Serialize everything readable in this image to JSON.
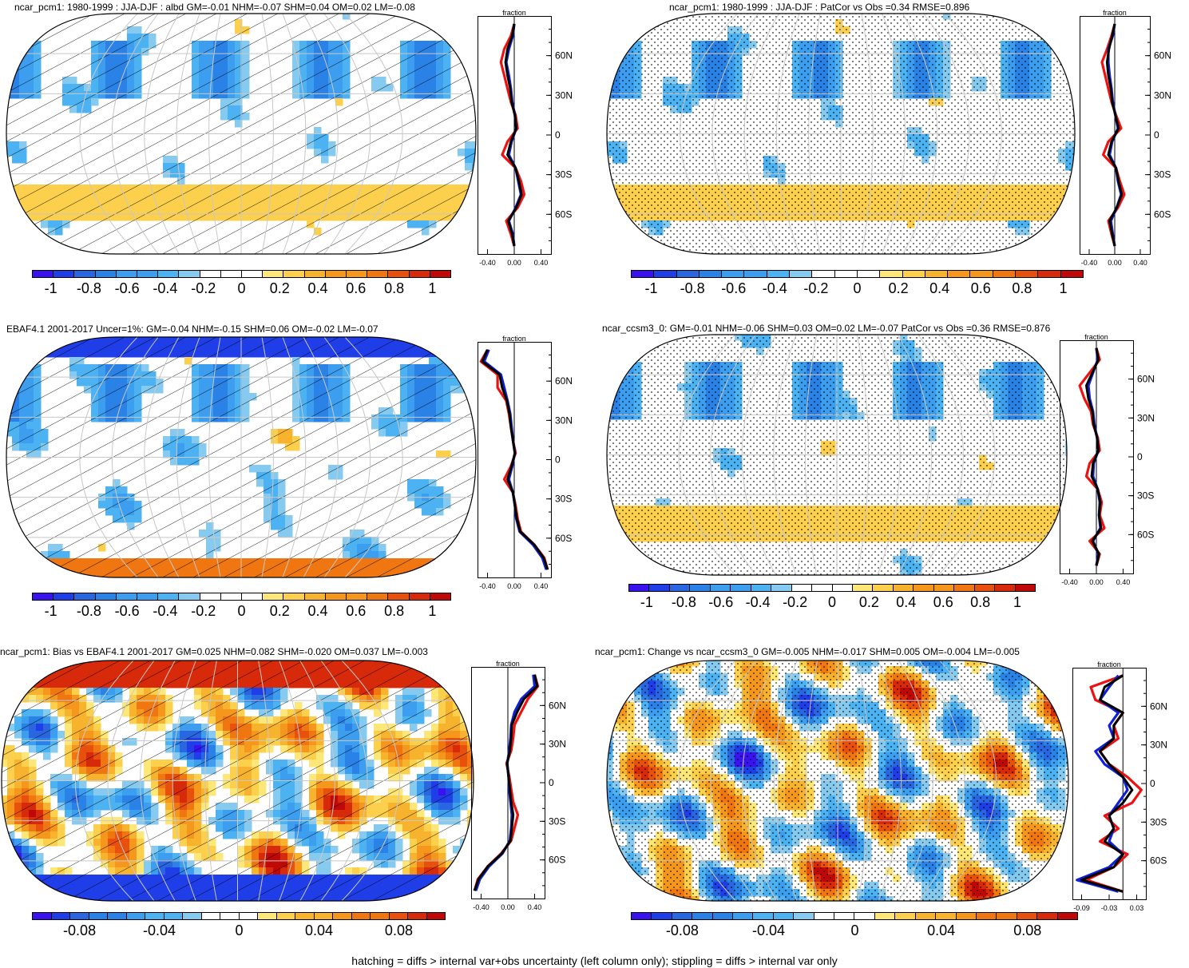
{
  "panels": [
    {
      "id": "p1",
      "title": "ncar_pcm1: 1980-1999 : JJA-DJF : albd GM=-0.01 NHM=-0.07 SHM=0.04 OM=0.02 LM=-0.08",
      "overlay": "hatch",
      "colorbar_ticks": [
        "-1",
        "-0.8",
        "-0.6",
        "-0.4",
        "-0.2",
        "0",
        "0.2",
        "0.4",
        "0.6",
        "0.8",
        "1"
      ],
      "zonal": {
        "label": "fraction",
        "lat_ticks": [
          "60N",
          "30N",
          "0",
          "30S",
          "60S"
        ],
        "x_ticks": [
          "-0.40",
          "0.00",
          "0.40"
        ],
        "xrange": [
          -0.55,
          0.55
        ]
      }
    },
    {
      "id": "p2",
      "title": "ncar_pcm1: 1980-1999 : JJA-DJF : PatCor vs Obs =0.34 RMSE=0.896",
      "overlay": "stipple",
      "colorbar_ticks": [
        "-1",
        "-0.8",
        "-0.6",
        "-0.4",
        "-0.2",
        "0",
        "0.2",
        "0.4",
        "0.6",
        "0.8",
        "1"
      ],
      "zonal": {
        "label": "fraction",
        "lat_ticks": [
          "60N",
          "30N",
          "0",
          "30S",
          "60S"
        ],
        "x_ticks": [
          "-0.40",
          "0.00",
          "0.40"
        ],
        "xrange": [
          -0.55,
          0.55
        ]
      }
    },
    {
      "id": "p3",
      "title": "EBAF4.1 2001-2017 Uncer=1%: GM=-0.04 NHM=-0.15 SHM=0.06 OM=-0.02 LM=-0.07",
      "overlay": "hatch",
      "colorbar_ticks": [
        "-1",
        "-0.8",
        "-0.6",
        "-0.4",
        "-0.2",
        "0",
        "0.2",
        "0.4",
        "0.6",
        "0.8",
        "1"
      ],
      "zonal": {
        "label": "fraction",
        "lat_ticks": [
          "60N",
          "30N",
          "0",
          "30S",
          "60S"
        ],
        "x_ticks": [
          "-0.40",
          "0.00",
          "0.40"
        ],
        "xrange": [
          -0.55,
          0.55
        ]
      }
    },
    {
      "id": "p4",
      "title": "ncar_ccsm3_0: GM=-0.01 NHM=-0.06 SHM=0.03 OM=0.02 LM=-0.07 PatCor vs Obs =0.36 RMSE=0.876",
      "overlay": "stipple",
      "colorbar_ticks": [
        "-1",
        "-0.8",
        "-0.6",
        "-0.4",
        "-0.2",
        "0",
        "0.2",
        "0.4",
        "0.6",
        "0.8",
        "1"
      ],
      "zonal": {
        "label": "fraction",
        "lat_ticks": [
          "60N",
          "30N",
          "0",
          "30S",
          "60S"
        ],
        "x_ticks": [
          "-0.40",
          "0.00",
          "0.40"
        ],
        "xrange": [
          -0.55,
          0.55
        ]
      }
    },
    {
      "id": "p5",
      "title": "ncar_pcm1: Bias vs EBAF4.1 2001-2017 GM=0.025 NHM=0.082 SHM=-0.020 OM=0.037 LM=-0.003",
      "overlay": "hatch",
      "colorbar_ticks": [
        "-0.08",
        "-0.04",
        "0",
        "0.04",
        "0.08"
      ],
      "zonal": {
        "label": "fraction",
        "lat_ticks": [
          "60N",
          "30N",
          "0",
          "30S",
          "60S"
        ],
        "x_ticks": [
          "-0.40",
          "0.00",
          "0.40"
        ],
        "xrange": [
          -0.55,
          0.55
        ]
      }
    },
    {
      "id": "p6",
      "title": "ncar_pcm1: Change vs ncar_ccsm3_0 GM=-0.005 NHM=-0.017 SHM=0.005 OM=-0.004 LM=-0.005",
      "overlay": "stipple",
      "colorbar_ticks": [
        "-0.08",
        "-0.04",
        "0",
        "0.04",
        "0.08"
      ],
      "zonal": {
        "label": "fraction",
        "lat_ticks": [
          "60N",
          "30N",
          "0",
          "30S",
          "60S"
        ],
        "x_ticks": [
          "-0.09",
          "-0.03",
          "0.03"
        ],
        "xrange": [
          -0.11,
          0.05
        ]
      }
    }
  ],
  "footer": "hatching = diffs > internal var+obs uncertainty (left column only); stippling = diffs > internal var only",
  "colors": {
    "colormap": [
      "#3a12f0",
      "#1f3ee8",
      "#2a66e0",
      "#2b82e6",
      "#3d9ef0",
      "#4cb2f2",
      "#86cbef",
      "#ffffff",
      "#fff6a8",
      "#fde779",
      "#fccf4d",
      "#f8b32e",
      "#f5961d",
      "#f07612",
      "#e8500d",
      "#d72a0a",
      "#c00808"
    ],
    "red_line": "#ee1111",
    "blue_line": "#1020d8",
    "black_line": "#000000"
  },
  "chart_data": [
    {
      "type": "heatmap",
      "title": "ncar_pcm1: 1980-1999 : JJA-DJF : albd GM=-0.01 NHM=-0.07 SHM=0.04 OM=0.02 LM=-0.08",
      "colorbar": {
        "range": [
          -1,
          1
        ],
        "ticks": [
          -1,
          -0.8,
          -0.6,
          -0.4,
          -0.2,
          0,
          0.2,
          0.4,
          0.6,
          0.8,
          1
        ]
      },
      "projection": "robinson",
      "zonal_mean": {
        "xlabel": "fraction",
        "xlim": [
          -0.55,
          0.55
        ],
        "ylim": [
          -90,
          90
        ],
        "lat": [
          -84,
          -75,
          -65,
          -55,
          -45,
          -35,
          -25,
          -15,
          -5,
          5,
          15,
          25,
          35,
          45,
          55,
          65,
          75,
          84
        ],
        "series": [
          {
            "color": "red",
            "values": [
              0.0,
              -0.05,
              -0.12,
              0.05,
              0.15,
              0.1,
              0.02,
              -0.18,
              -0.1,
              0.05,
              0.02,
              -0.05,
              -0.1,
              -0.15,
              -0.2,
              -0.15,
              -0.05,
              0.0
            ]
          },
          {
            "color": "blue",
            "values": [
              0.0,
              -0.02,
              -0.08,
              0.02,
              0.1,
              0.06,
              0.02,
              -0.08,
              -0.04,
              0.03,
              0.01,
              -0.03,
              -0.05,
              -0.08,
              -0.12,
              -0.08,
              -0.02,
              0.0
            ]
          },
          {
            "color": "black",
            "values": [
              0.0,
              -0.03,
              -0.09,
              0.03,
              0.11,
              0.07,
              0.02,
              -0.1,
              -0.05,
              0.03,
              0.01,
              -0.04,
              -0.06,
              -0.1,
              -0.13,
              -0.1,
              -0.03,
              0.0
            ]
          }
        ]
      }
    },
    {
      "type": "heatmap",
      "title": "ncar_pcm1: 1980-1999 : JJA-DJF : PatCor vs Obs =0.34 RMSE=0.896",
      "colorbar": {
        "range": [
          -1,
          1
        ],
        "ticks": [
          -1,
          -0.8,
          -0.6,
          -0.4,
          -0.2,
          0,
          0.2,
          0.4,
          0.6,
          0.8,
          1
        ]
      },
      "projection": "robinson",
      "zonal_mean": {
        "xlabel": "fraction",
        "xlim": [
          -0.55,
          0.55
        ],
        "ylim": [
          -90,
          90
        ],
        "lat": [
          -84,
          -75,
          -65,
          -55,
          -45,
          -35,
          -25,
          -15,
          -5,
          5,
          15,
          25,
          35,
          45,
          55,
          65,
          75,
          84
        ],
        "series": [
          {
            "color": "red",
            "values": [
              0.0,
              -0.05,
              -0.1,
              0.05,
              0.15,
              0.08,
              0.02,
              -0.18,
              -0.1,
              0.1,
              0.02,
              -0.05,
              -0.1,
              -0.15,
              -0.2,
              -0.12,
              -0.05,
              0.0
            ]
          },
          {
            "color": "blue",
            "values": [
              0.0,
              -0.03,
              -0.06,
              0.03,
              0.1,
              0.05,
              0.02,
              -0.08,
              -0.04,
              0.05,
              0.01,
              -0.03,
              -0.05,
              -0.08,
              -0.1,
              -0.1,
              -0.03,
              0.0
            ]
          },
          {
            "color": "black",
            "values": [
              0.0,
              -0.04,
              -0.08,
              0.03,
              0.11,
              0.06,
              0.02,
              -0.1,
              -0.05,
              0.06,
              0.01,
              -0.04,
              -0.06,
              -0.1,
              -0.12,
              -0.09,
              -0.04,
              0.0
            ]
          }
        ]
      }
    },
    {
      "type": "heatmap",
      "title": "EBAF4.1 2001-2017 Uncer=1%: GM=-0.04 NHM=-0.15 SHM=0.06 OM=-0.02 LM=-0.07",
      "colorbar": {
        "range": [
          -1,
          1
        ],
        "ticks": [
          -1,
          -0.8,
          -0.6,
          -0.4,
          -0.2,
          0,
          0.2,
          0.4,
          0.6,
          0.8,
          1
        ]
      },
      "projection": "robinson",
      "zonal_mean": {
        "xlabel": "fraction",
        "xlim": [
          -0.55,
          0.55
        ],
        "ylim": [
          -90,
          90
        ],
        "lat": [
          -84,
          -75,
          -65,
          -55,
          -45,
          -35,
          -25,
          -15,
          -5,
          5,
          15,
          25,
          35,
          45,
          55,
          65,
          75,
          84
        ],
        "series": [
          {
            "color": "red",
            "values": [
              0.5,
              0.45,
              0.3,
              0.1,
              0.05,
              0.02,
              -0.02,
              -0.15,
              -0.05,
              0.02,
              -0.02,
              -0.05,
              -0.08,
              -0.12,
              -0.25,
              -0.25,
              -0.5,
              -0.4
            ]
          },
          {
            "color": "blue",
            "values": [
              0.48,
              0.42,
              0.28,
              0.08,
              0.03,
              0.01,
              -0.02,
              -0.08,
              -0.03,
              0.01,
              -0.02,
              -0.04,
              -0.06,
              -0.1,
              -0.15,
              -0.2,
              -0.45,
              -0.38
            ]
          },
          {
            "color": "black",
            "values": [
              0.5,
              0.44,
              0.3,
              0.09,
              0.04,
              0.01,
              -0.02,
              -0.1,
              -0.04,
              0.01,
              -0.02,
              -0.05,
              -0.07,
              -0.11,
              -0.18,
              -0.22,
              -0.48,
              -0.4
            ]
          }
        ]
      }
    },
    {
      "type": "heatmap",
      "title": "ncar_ccsm3_0: GM=-0.01 NHM=-0.06 SHM=0.03 OM=0.02 LM=-0.07 PatCor vs Obs =0.36 RMSE=0.876",
      "colorbar": {
        "range": [
          -1,
          1
        ],
        "ticks": [
          -1,
          -0.8,
          -0.6,
          -0.4,
          -0.2,
          0,
          0.2,
          0.4,
          0.6,
          0.8,
          1
        ]
      },
      "projection": "robinson",
      "zonal_mean": {
        "xlabel": "fraction",
        "xlim": [
          -0.55,
          0.55
        ],
        "ylim": [
          -90,
          90
        ],
        "lat": [
          -84,
          -75,
          -65,
          -55,
          -45,
          -35,
          -25,
          -15,
          -5,
          5,
          15,
          25,
          35,
          45,
          55,
          65,
          75,
          84
        ],
        "series": [
          {
            "color": "red",
            "values": [
              0.0,
              0.05,
              -0.1,
              0.12,
              0.05,
              0.08,
              0.02,
              -0.15,
              -0.1,
              0.05,
              0.02,
              -0.05,
              -0.08,
              -0.18,
              -0.25,
              -0.1,
              0.05,
              0.0
            ]
          },
          {
            "color": "blue",
            "values": [
              0.0,
              0.03,
              -0.05,
              0.06,
              0.04,
              0.05,
              0.02,
              -0.05,
              -0.04,
              0.03,
              0.01,
              -0.03,
              -0.05,
              -0.1,
              -0.12,
              -0.05,
              0.02,
              0.0
            ]
          },
          {
            "color": "black",
            "values": [
              0.0,
              0.04,
              -0.06,
              0.07,
              0.04,
              0.06,
              0.02,
              -0.07,
              -0.05,
              0.03,
              0.01,
              -0.04,
              -0.06,
              -0.12,
              -0.15,
              -0.06,
              0.03,
              0.0
            ]
          }
        ]
      }
    },
    {
      "type": "heatmap",
      "title": "ncar_pcm1: Bias vs EBAF4.1 2001-2017 GM=0.025 NHM=0.082 SHM=-0.020 OM=0.037 LM=-0.003",
      "colorbar": {
        "range": [
          -0.1,
          0.1
        ],
        "ticks": [
          -0.08,
          -0.04,
          0,
          0.04,
          0.08
        ]
      },
      "projection": "robinson",
      "zonal_mean": {
        "xlabel": "fraction",
        "xlim": [
          -0.55,
          0.55
        ],
        "ylim": [
          -90,
          90
        ],
        "lat": [
          -84,
          -75,
          -65,
          -55,
          -45,
          -35,
          -25,
          -15,
          -5,
          5,
          15,
          25,
          35,
          45,
          55,
          65,
          75,
          84
        ],
        "series": [
          {
            "color": "red",
            "values": [
              -0.5,
              -0.45,
              -0.3,
              -0.1,
              0.05,
              0.1,
              0.15,
              0.08,
              0.05,
              0.02,
              -0.02,
              0.05,
              0.08,
              0.1,
              0.2,
              0.3,
              0.45,
              0.4
            ]
          },
          {
            "color": "blue",
            "values": [
              -0.48,
              -0.42,
              -0.28,
              -0.08,
              0.03,
              0.05,
              0.06,
              0.04,
              0.02,
              0.01,
              -0.01,
              0.02,
              0.04,
              0.05,
              0.1,
              0.2,
              0.4,
              0.38
            ]
          },
          {
            "color": "black",
            "values": [
              -0.5,
              -0.44,
              -0.3,
              -0.09,
              0.04,
              0.06,
              0.08,
              0.05,
              0.03,
              0.01,
              -0.01,
              0.03,
              0.05,
              0.06,
              0.14,
              0.24,
              0.44,
              0.4
            ]
          }
        ]
      }
    },
    {
      "type": "heatmap",
      "title": "ncar_pcm1: Change vs ncar_ccsm3_0 GM=-0.005 NHM=-0.017 SHM=0.005 OM=-0.004 LM=-0.005",
      "colorbar": {
        "range": [
          -0.1,
          0.1
        ],
        "ticks": [
          -0.08,
          -0.04,
          0,
          0.04,
          0.08
        ]
      },
      "projection": "robinson",
      "zonal_mean": {
        "xlabel": "fraction",
        "xlim": [
          -0.11,
          0.05
        ],
        "ylim": [
          -90,
          90
        ],
        "lat": [
          -84,
          -75,
          -65,
          -55,
          -45,
          -35,
          -25,
          -15,
          -5,
          5,
          15,
          25,
          35,
          45,
          55,
          65,
          75,
          84
        ],
        "series": [
          {
            "color": "red",
            "values": [
              0.0,
              -0.08,
              -0.02,
              0.01,
              -0.05,
              -0.01,
              -0.04,
              0.02,
              0.04,
              0.01,
              -0.03,
              -0.05,
              -0.01,
              -0.02,
              0.0,
              -0.06,
              -0.07,
              0.0
            ]
          },
          {
            "color": "blue",
            "values": [
              -0.01,
              -0.1,
              -0.03,
              0.0,
              -0.03,
              -0.02,
              -0.03,
              -0.01,
              0.01,
              0.0,
              -0.04,
              -0.06,
              -0.02,
              -0.03,
              -0.01,
              -0.05,
              -0.03,
              -0.01
            ]
          },
          {
            "color": "black",
            "values": [
              0.0,
              -0.09,
              -0.02,
              0.0,
              -0.04,
              -0.02,
              -0.03,
              0.0,
              0.02,
              0.0,
              -0.03,
              -0.05,
              -0.02,
              -0.02,
              0.0,
              -0.05,
              -0.04,
              0.0
            ]
          }
        ]
      }
    }
  ]
}
